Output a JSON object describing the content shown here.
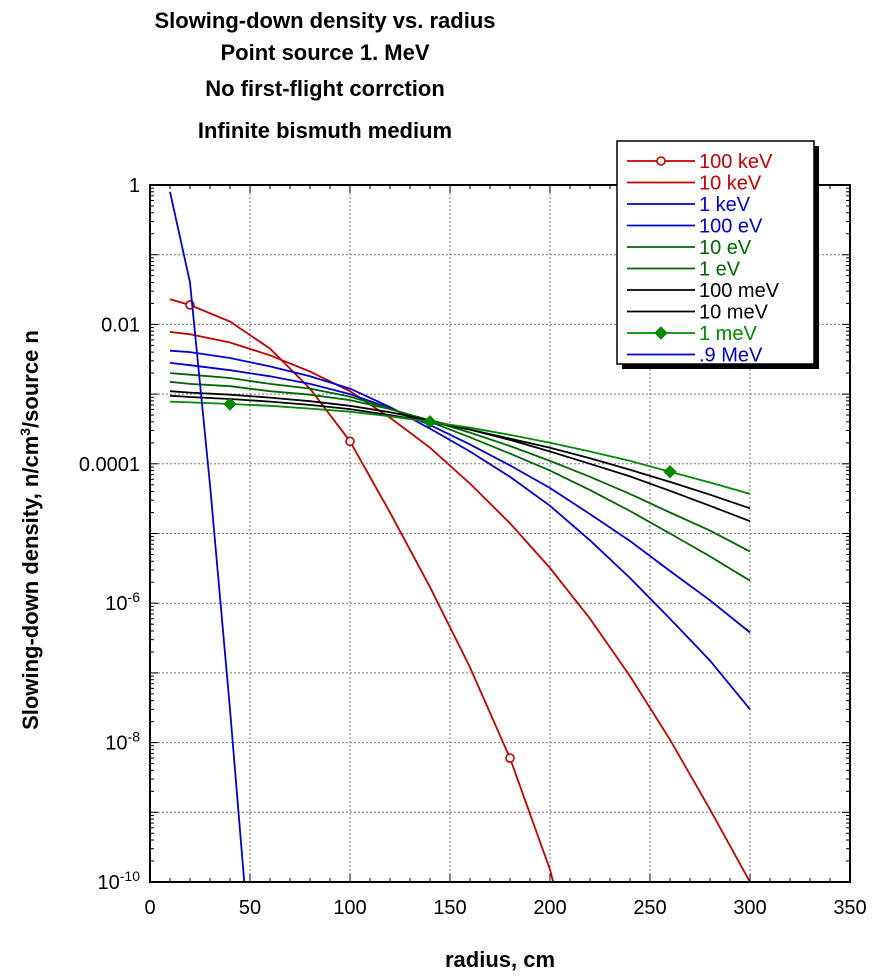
{
  "chart_data": {
    "type": "line",
    "title_lines": [
      "Slowing-down density vs. radius",
      "Point source 1. MeV",
      "No first-flight corrction",
      "Infinite bismuth medium"
    ],
    "xlabel": "radius, cm",
    "ylabel_main": "Slowing-down density, n/cm",
    "ylabel_sup": "3",
    "ylabel_tail": "/source n",
    "xlim": [
      0,
      350
    ],
    "ylim": [
      1e-10,
      1
    ],
    "yscale": "log",
    "grid": true,
    "legend_position": "top-right",
    "x_ticks": [
      "0",
      "50",
      "100",
      "150",
      "200",
      "250",
      "300",
      "350"
    ],
    "y_ticks": [
      {
        "base": "1",
        "exp": ""
      },
      {
        "base": "0.01",
        "exp": ""
      },
      {
        "base": "0.0001",
        "exp": ""
      },
      {
        "base": "10",
        "exp": "-6"
      },
      {
        "base": "10",
        "exp": "-8"
      },
      {
        "base": "10",
        "exp": "-10"
      }
    ],
    "series": [
      {
        "name": "100 keV",
        "color": "#c00000",
        "marker": "circle-open",
        "x": [
          10,
          20,
          40,
          60,
          80,
          100,
          120,
          140,
          160,
          180,
          200,
          220
        ],
        "y": [
          0.023,
          0.019,
          0.011,
          0.0045,
          0.0012,
          0.00021,
          2e-05,
          1.7e-06,
          1.2e-07,
          6e-09,
          1.5e-10,
          1e-12
        ],
        "marker_x": [
          20,
          100,
          180
        ]
      },
      {
        "name": "10 keV",
        "color": "#c00000",
        "marker": "none",
        "x": [
          10,
          20,
          40,
          60,
          80,
          100,
          120,
          140,
          160,
          180,
          200,
          220,
          240,
          260,
          280,
          300
        ],
        "y": [
          0.0078,
          0.0072,
          0.0055,
          0.0036,
          0.0021,
          0.0011,
          0.00046,
          0.00017,
          5.2e-05,
          1.4e-05,
          3.2e-06,
          6e-07,
          9e-08,
          1.1e-08,
          1.1e-09,
          1e-10
        ]
      },
      {
        "name": "1 keV",
        "color": "#0000cc",
        "marker": "none",
        "x": [
          10,
          20,
          40,
          60,
          80,
          100,
          120,
          140,
          160,
          180,
          200,
          220,
          240,
          260,
          280,
          300
        ],
        "y": [
          0.0042,
          0.004,
          0.0033,
          0.0025,
          0.0018,
          0.0012,
          0.00065,
          0.00032,
          0.00015,
          6.5e-05,
          2.5e-05,
          8e-06,
          2.3e-06,
          6e-07,
          1.5e-07,
          3e-08
        ]
      },
      {
        "name": "100 eV",
        "color": "#0000cc",
        "marker": "none",
        "x": [
          10,
          20,
          40,
          60,
          80,
          100,
          120,
          140,
          160,
          180,
          200,
          220,
          240,
          260,
          280,
          300
        ],
        "y": [
          0.0028,
          0.0026,
          0.0022,
          0.0018,
          0.0014,
          0.001,
          0.00063,
          0.00036,
          0.00019,
          9.5e-05,
          4.5e-05,
          1.9e-05,
          7.8e-06,
          2.9e-06,
          1.1e-06,
          3.8e-07
        ]
      },
      {
        "name": "10 eV",
        "color": "#006600",
        "marker": "none",
        "x": [
          10,
          20,
          40,
          60,
          80,
          100,
          120,
          140,
          160,
          180,
          200,
          220,
          240,
          260,
          280,
          300
        ],
        "y": [
          0.002,
          0.0019,
          0.0017,
          0.0014,
          0.0012,
          0.00092,
          0.00062,
          0.0004,
          0.00024,
          0.00014,
          8e-05,
          4.2e-05,
          2.1e-05,
          1e-05,
          4.7e-06,
          2.1e-06
        ]
      },
      {
        "name": "1 eV",
        "color": "#006600",
        "marker": "none",
        "x": [
          10,
          20,
          40,
          60,
          80,
          100,
          120,
          140,
          160,
          180,
          200,
          220,
          240,
          260,
          280,
          300
        ],
        "y": [
          0.0015,
          0.0014,
          0.0013,
          0.0011,
          0.00098,
          0.00082,
          0.00061,
          0.00042,
          0.00028,
          0.00018,
          0.00011,
          6.5e-05,
          3.7e-05,
          2e-05,
          1.1e-05,
          5.5e-06
        ]
      },
      {
        "name": "100 meV",
        "color": "#000000",
        "marker": "none",
        "x": [
          10,
          20,
          40,
          60,
          80,
          100,
          120,
          140,
          160,
          180,
          200,
          220,
          240,
          260,
          280,
          300
        ],
        "y": [
          0.0011,
          0.00105,
          0.00098,
          0.00089,
          0.00079,
          0.00068,
          0.00055,
          0.00042,
          0.00031,
          0.00022,
          0.00015,
          0.0001,
          6.6e-05,
          4.1e-05,
          2.5e-05,
          1.5e-05
        ]
      },
      {
        "name": "10 meV",
        "color": "#000000",
        "marker": "none",
        "x": [
          10,
          20,
          40,
          60,
          80,
          100,
          120,
          140,
          160,
          180,
          200,
          220,
          240,
          260,
          280,
          300
        ],
        "y": [
          0.00095,
          0.00091,
          0.00085,
          0.00078,
          0.0007,
          0.00061,
          0.0005,
          0.0004,
          0.00031,
          0.00023,
          0.00017,
          0.00012,
          8.2e-05,
          5.5e-05,
          3.6e-05,
          2.3e-05
        ]
      },
      {
        "name": "1 meV",
        "color": "#008800",
        "marker": "diamond-filled",
        "x": [
          10,
          20,
          40,
          60,
          80,
          100,
          120,
          140,
          160,
          180,
          200,
          220,
          240,
          260,
          280,
          300
        ],
        "y": [
          0.00078,
          0.00076,
          0.00072,
          0.00068,
          0.00062,
          0.00056,
          0.00048,
          0.0004,
          0.00033,
          0.00026,
          0.0002,
          0.00015,
          0.00011,
          7.7e-05,
          5.4e-05,
          3.7e-05
        ],
        "marker_x": [
          40,
          140,
          260
        ]
      },
      {
        "name": ".9 MeV",
        "color": "#0000cc",
        "marker": "none",
        "x": [
          10,
          20,
          30,
          40,
          50
        ],
        "y": [
          0.8,
          0.04,
          5e-05,
          3e-08,
          1e-11
        ]
      }
    ]
  }
}
